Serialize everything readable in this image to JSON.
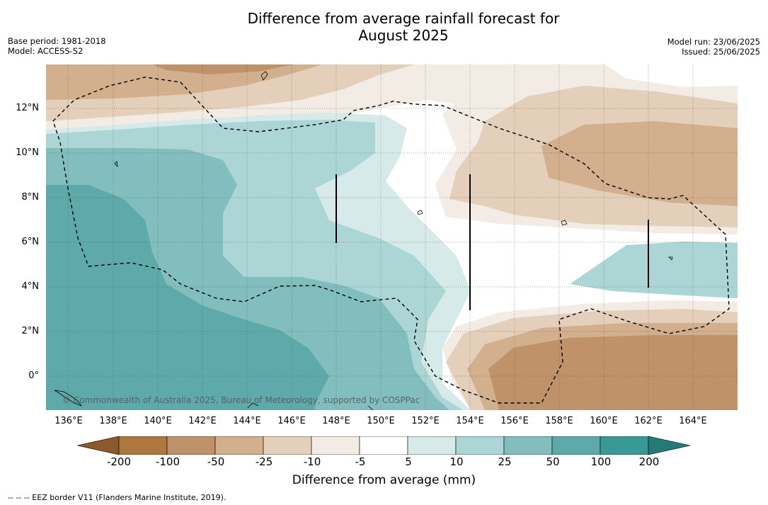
{
  "title_line1": "Difference from average rainfall forecast for",
  "title_line2": "August 2025",
  "base_period": "Base period: 1981-2018",
  "model": "Model: ACCESS-S2",
  "model_run": "Model run: 23/06/2025",
  "issued": "Issued: 25/06/2025",
  "copyright": "© Commonwealth of Australia 2025, Bureau of Meteorology, supported by COSPPac",
  "footer": "--  --  -- EEZ border V11 (Flanders Marine Institute, 2019).",
  "lat_labels": [
    "12°N",
    "10°N",
    "8°N",
    "6°N",
    "4°N",
    "2°N",
    "0°"
  ],
  "lon_labels": [
    "136°E",
    "138°E",
    "140°E",
    "142°E",
    "144°E",
    "146°E",
    "148°E",
    "150°E",
    "152°E",
    "154°E",
    "156°E",
    "158°E",
    "160°E",
    "162°E",
    "164°E"
  ],
  "colorbar": {
    "title": "Difference from average (mm)",
    "ticks": [
      "-200",
      "-100",
      "-50",
      "-25",
      "-10",
      "-5",
      "5",
      "10",
      "25",
      "50",
      "100",
      "200"
    ],
    "colors": [
      "#8c5a2a",
      "#ad773f",
      "#bf926a",
      "#d2af8d",
      "#e4cfbb",
      "#f2ece5",
      "#ffffff",
      "#d6ebe9",
      "#acd6d5",
      "#82bebd",
      "#5eaaaa",
      "#389996",
      "#257a78"
    ]
  }
}
